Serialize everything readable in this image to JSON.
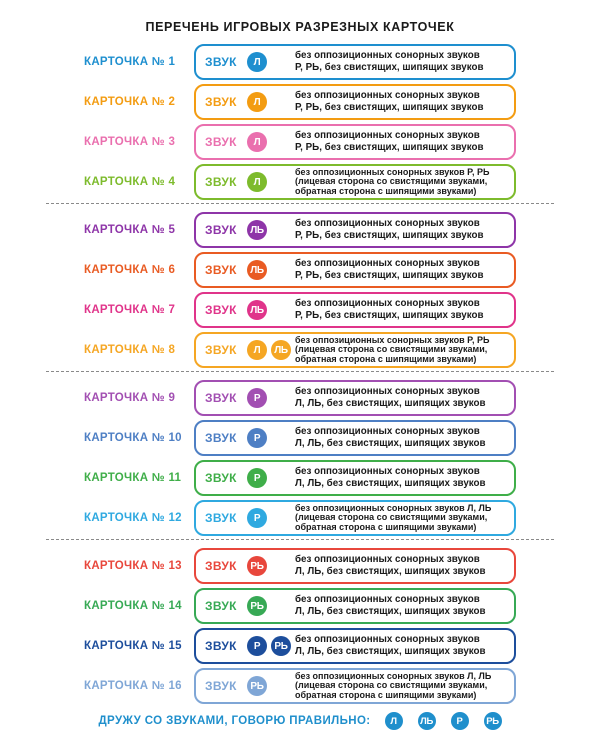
{
  "title": "ПЕРЕЧЕНЬ ИГРОВЫХ РАЗРЕЗНЫХ КАРТОЧЕК",
  "cards": [
    {
      "label": "КАРТОЧКА № 1",
      "color": "#1e8fcf",
      "zvuk": "ЗВУК",
      "badges": [
        "Л"
      ],
      "desc": [
        "без оппозиционных сонорных звуков",
        "Р, РЬ, без свистящих, шипящих звуков"
      ]
    },
    {
      "label": "КАРТОЧКА № 2",
      "color": "#f39c12",
      "zvuk": "ЗВУК",
      "badges": [
        "Л"
      ],
      "desc": [
        "без оппозиционных сонорных звуков",
        "Р, РЬ, без свистящих, шипящих звуков"
      ]
    },
    {
      "label": "КАРТОЧКА № 3",
      "color": "#ea6fae",
      "zvuk": "ЗВУК",
      "badges": [
        "Л"
      ],
      "desc": [
        "без оппозиционных сонорных звуков",
        "Р, РЬ, без свистящих, шипящих звуков"
      ]
    },
    {
      "label": "КАРТОЧКА № 4",
      "color": "#7dbb2c",
      "zvuk": "ЗВУК",
      "badges": [
        "Л"
      ],
      "desc": [
        "без оппозиционных сонорных звуков Р, РЬ",
        "(лицевая сторона со свистящими звуками,",
        "обратная сторона с шипящими звуками)"
      ]
    },
    {
      "label": "КАРТОЧКА № 5",
      "color": "#8e35a8",
      "zvuk": "ЗВУК",
      "badges": [
        "ЛЬ"
      ],
      "desc": [
        "без оппозиционных сонорных звуков",
        "Р, РЬ, без свистящих, шипящих звуков"
      ]
    },
    {
      "label": "КАРТОЧКА № 6",
      "color": "#e95b23",
      "zvuk": "ЗВУК",
      "badges": [
        "ЛЬ"
      ],
      "desc": [
        "без оппозиционных сонорных звуков",
        "Р, РЬ, без свистящих, шипящих звуков"
      ]
    },
    {
      "label": "КАРТОЧКА № 7",
      "color": "#e0348a",
      "zvuk": "ЗВУК",
      "badges": [
        "ЛЬ"
      ],
      "desc": [
        "без оппозиционных сонорных звуков",
        "Р, РЬ, без свистящих, шипящих звуков"
      ]
    },
    {
      "label": "КАРТОЧКА № 8",
      "color": "#f5a623",
      "zvuk": "ЗВУК",
      "badges": [
        "Л",
        "ЛЬ"
      ],
      "desc": [
        "без оппозиционных сонорных звуков Р, РЬ",
        "(лицевая сторона со свистящими звуками,",
        "обратная сторона с шипящими звуками)"
      ]
    },
    {
      "label": "КАРТОЧКА № 9",
      "color": "#a24fb2",
      "zvuk": "ЗВУК",
      "badges": [
        "Р"
      ],
      "desc": [
        "без оппозиционных сонорных звуков",
        "Л, ЛЬ, без свистящих, шипящих звуков"
      ]
    },
    {
      "label": "КАРТОЧКА № 10",
      "color": "#4e7fc4",
      "zvuk": "ЗВУК",
      "badges": [
        "Р"
      ],
      "desc": [
        "без оппозиционных сонорных звуков",
        "Л, ЛЬ, без свистящих, шипящих звуков"
      ]
    },
    {
      "label": "КАРТОЧКА № 11",
      "color": "#3fae49",
      "zvuk": "ЗВУК",
      "badges": [
        "Р"
      ],
      "desc": [
        "без оппозиционных сонорных звуков",
        "Л, ЛЬ, без свистящих, шипящих звуков"
      ]
    },
    {
      "label": "КАРТОЧКА № 12",
      "color": "#2fa9e0",
      "zvuk": "ЗВУК",
      "badges": [
        "Р"
      ],
      "desc": [
        "без оппозиционных сонорных звуков Л, ЛЬ",
        "(лицевая сторона со свистящими звуками,",
        "обратная сторона с шипящими звуками)"
      ]
    },
    {
      "label": "КАРТОЧКА № 13",
      "color": "#e8473c",
      "zvuk": "ЗВУК",
      "badges": [
        "РЬ"
      ],
      "desc": [
        "без оппозиционных сонорных звуков",
        "Л, ЛЬ, без свистящих, шипящих звуков"
      ]
    },
    {
      "label": "КАРТОЧКА № 14",
      "color": "#37a955",
      "zvuk": "ЗВУК",
      "badges": [
        "РЬ"
      ],
      "desc": [
        "без оппозиционных сонорных звуков",
        "Л, ЛЬ, без свистящих, шипящих звуков"
      ]
    },
    {
      "label": "КАРТОЧКА № 15",
      "color": "#1d4e9c",
      "zvuk": "ЗВУК",
      "badges": [
        "Р",
        "РЬ"
      ],
      "desc": [
        "без оппозиционных сонорных звуков",
        "Л, ЛЬ, без свистящих, шипящих звуков"
      ]
    },
    {
      "label": "КАРТОЧКА № 16",
      "color": "#7fa6d6",
      "zvuk": "ЗВУК",
      "badges": [
        "РЬ"
      ],
      "desc": [
        "без оппозиционных сонорных звуков Л, ЛЬ",
        "(лицевая сторона со свистящими звуками,",
        "обратная сторона с шипящими звуками)"
      ]
    }
  ],
  "footer": {
    "text": "ДРУЖУ СО ЗВУКАМИ, ГОВОРЮ ПРАВИЛЬНО:",
    "badges": [
      "Л",
      "ЛЬ",
      "Р",
      "РЬ"
    ],
    "color": "#1f8fcc"
  }
}
